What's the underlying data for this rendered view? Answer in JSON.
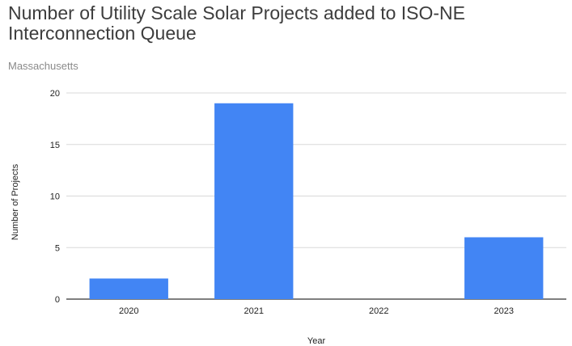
{
  "chart_data": {
    "type": "bar",
    "title": "Number of Utility Scale Solar Projects added to ISO-NE Interconnection Queue",
    "subtitle": "Massachusetts",
    "xlabel": "Year",
    "ylabel": "Number of Projects",
    "categories": [
      "2020",
      "2021",
      "2022",
      "2023"
    ],
    "values": [
      2,
      19,
      0,
      6
    ],
    "ylim": [
      0,
      20
    ],
    "yticks": [
      "0",
      "5",
      "10",
      "15",
      "20"
    ],
    "grid": true,
    "bar_color": "#4285f4"
  }
}
